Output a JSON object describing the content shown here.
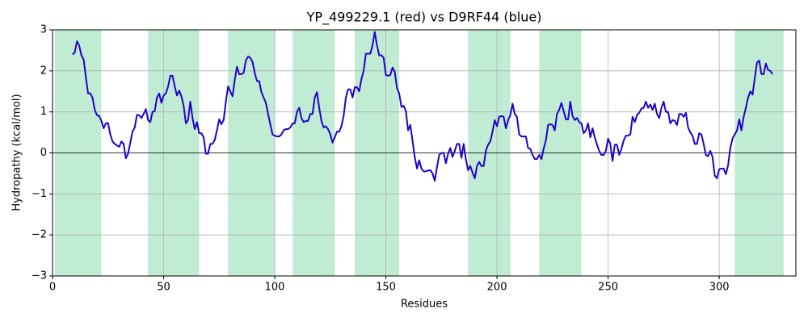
{
  "chart_data": {
    "type": "line",
    "title": "YP_499229.1 (red) vs D9RF44 (blue)",
    "xlabel": "Residues",
    "ylabel": "Hydropathy (kcal/mol)",
    "color": "#2200cc",
    "span_color": "#c0ecd4",
    "zero_line": true,
    "grid": true,
    "xlim": [
      0,
      334.5
    ],
    "ylim": [
      -3,
      3
    ],
    "xticks": [
      0,
      50,
      100,
      150,
      200,
      250,
      300
    ],
    "yticks": [
      {
        "value": -3,
        "label": "−3"
      },
      {
        "value": -2,
        "label": "−2"
      },
      {
        "value": -1,
        "label": "−1"
      },
      0,
      1,
      2,
      3
    ],
    "spans": [
      [
        1,
        22
      ],
      [
        43,
        66
      ],
      [
        79,
        100
      ],
      [
        108,
        127
      ],
      [
        136,
        156
      ],
      [
        187,
        206
      ],
      [
        219,
        238
      ],
      [
        307,
        329
      ]
    ],
    "x": [
      9,
      10,
      11,
      12,
      13,
      14,
      15,
      16,
      17,
      18,
      19,
      20,
      21,
      22,
      23,
      24,
      25,
      26,
      27,
      28,
      29,
      30,
      31,
      32,
      33,
      34,
      35,
      36,
      37,
      38,
      39,
      40,
      41,
      42,
      43,
      44,
      45,
      46,
      47,
      48,
      49,
      50,
      51,
      52,
      53,
      54,
      55,
      56,
      57,
      58,
      59,
      60,
      61,
      62,
      63,
      64,
      65,
      66,
      67,
      68,
      69,
      70,
      71,
      72,
      73,
      74,
      75,
      76,
      77,
      78,
      79,
      80,
      81,
      82,
      83,
      84,
      85,
      86,
      87,
      88,
      89,
      90,
      91,
      92,
      93,
      94,
      95,
      96,
      97,
      98,
      99,
      100,
      101,
      102,
      103,
      104,
      105,
      106,
      107,
      108,
      109,
      110,
      111,
      112,
      113,
      114,
      115,
      116,
      117,
      118,
      119,
      120,
      121,
      122,
      123,
      124,
      125,
      126,
      127,
      128,
      129,
      130,
      131,
      132,
      133,
      134,
      135,
      136,
      137,
      138,
      139,
      140,
      141,
      142,
      143,
      144,
      145,
      146,
      147,
      148,
      149,
      150,
      151,
      152,
      153,
      154,
      155,
      156,
      157,
      158,
      159,
      160,
      161,
      162,
      163,
      164,
      165,
      166,
      167,
      168,
      169,
      170,
      171,
      172,
      173,
      174,
      175,
      176,
      177,
      178,
      179,
      180,
      181,
      182,
      183,
      184,
      185,
      186,
      187,
      188,
      189,
      190,
      191,
      192,
      193,
      194,
      195,
      196,
      197,
      198,
      199,
      200,
      201,
      202,
      203,
      204,
      205,
      206,
      207,
      208,
      209,
      210,
      211,
      212,
      213,
      214,
      215,
      216,
      217,
      218,
      219,
      220,
      221,
      222,
      223,
      224,
      225,
      226,
      227,
      228,
      229,
      230,
      231,
      232,
      233,
      234,
      235,
      236,
      237,
      238,
      239,
      240,
      241,
      242,
      243,
      244,
      245,
      246,
      247,
      248,
      249,
      250,
      251,
      252,
      253,
      254,
      255,
      256,
      257,
      258,
      259,
      260,
      261,
      262,
      263,
      264,
      265,
      266,
      267,
      268,
      269,
      270,
      271,
      272,
      273,
      274,
      275,
      276,
      277,
      278,
      279,
      280,
      281,
      282,
      283,
      284,
      285,
      286,
      287,
      288,
      289,
      290,
      291,
      292,
      293,
      294,
      295,
      296,
      297,
      298,
      299,
      300,
      301,
      302,
      303,
      304,
      305,
      306,
      307,
      308,
      309,
      310,
      311,
      312,
      313,
      314,
      315,
      316,
      317,
      318,
      319,
      320,
      321,
      322,
      323,
      324
    ],
    "values": [
      2.4,
      2.45,
      2.72,
      2.62,
      2.38,
      2.28,
      1.85,
      1.45,
      1.45,
      1.35,
      1.05,
      0.92,
      0.9,
      0.78,
      0.6,
      0.72,
      0.73,
      0.45,
      0.28,
      0.22,
      0.18,
      0.15,
      0.28,
      0.22,
      -0.13,
      -0.02,
      0.25,
      0.52,
      0.62,
      0.93,
      0.92,
      0.85,
      0.95,
      1.07,
      0.8,
      0.75,
      1.0,
      1.02,
      1.35,
      1.45,
      1.22,
      1.4,
      1.45,
      1.62,
      1.88,
      1.88,
      1.62,
      1.4,
      1.52,
      1.38,
      1.15,
      0.72,
      0.8,
      1.25,
      0.85,
      0.58,
      0.75,
      0.48,
      0.48,
      0.38,
      -0.02,
      -0.02,
      0.22,
      0.22,
      0.32,
      0.55,
      0.82,
      0.7,
      0.8,
      1.25,
      1.62,
      1.5,
      1.38,
      1.78,
      2.1,
      1.92,
      1.92,
      1.95,
      2.25,
      2.35,
      2.32,
      2.22,
      1.95,
      1.75,
      1.75,
      1.48,
      1.35,
      1.22,
      0.95,
      0.7,
      0.45,
      0.42,
      0.4,
      0.4,
      0.45,
      0.55,
      0.58,
      0.58,
      0.62,
      0.72,
      0.72,
      1.0,
      1.1,
      0.85,
      0.75,
      0.78,
      0.78,
      0.95,
      0.95,
      1.35,
      1.48,
      1.1,
      0.78,
      0.62,
      0.65,
      0.58,
      0.45,
      0.25,
      0.38,
      0.52,
      0.52,
      0.65,
      0.9,
      1.35,
      1.55,
      1.55,
      1.35,
      1.6,
      1.6,
      1.5,
      1.8,
      2.0,
      2.42,
      2.42,
      2.42,
      2.62,
      2.95,
      2.62,
      2.38,
      2.38,
      2.32,
      1.9,
      1.88,
      1.9,
      2.08,
      1.98,
      1.58,
      1.45,
      1.12,
      1.15,
      1.02,
      0.55,
      0.68,
      0.3,
      -0.1,
      -0.38,
      -0.18,
      -0.38,
      -0.45,
      -0.45,
      -0.43,
      -0.42,
      -0.5,
      -0.68,
      -0.35,
      -0.05,
      0.0,
      0.0,
      -0.25,
      -0.02,
      0.12,
      -0.1,
      0.05,
      0.22,
      0.22,
      -0.12,
      0.22,
      -0.15,
      -0.42,
      -0.32,
      -0.48,
      -0.62,
      -0.32,
      -0.22,
      -0.32,
      -0.32,
      0.05,
      0.2,
      0.28,
      0.52,
      0.8,
      0.65,
      0.88,
      0.9,
      0.88,
      0.6,
      0.8,
      0.92,
      1.2,
      0.95,
      0.88,
      0.45,
      0.4,
      0.4,
      0.4,
      0.12,
      0.1,
      -0.05,
      -0.15,
      -0.15,
      -0.05,
      -0.15,
      0.1,
      0.3,
      0.68,
      0.7,
      0.68,
      0.55,
      0.95,
      1.05,
      1.22,
      1.02,
      0.82,
      0.82,
      1.25,
      0.9,
      0.8,
      0.85,
      0.75,
      0.72,
      0.48,
      0.55,
      0.72,
      0.38,
      0.6,
      0.38,
      0.2,
      0.05,
      -0.05,
      -0.05,
      0.05,
      0.35,
      0.22,
      -0.2,
      0.2,
      0.2,
      -0.05,
      0.1,
      0.3,
      0.42,
      0.42,
      0.45,
      0.88,
      0.75,
      0.92,
      0.98,
      1.08,
      1.1,
      1.25,
      1.1,
      1.18,
      1.05,
      1.2,
      0.95,
      0.85,
      1.1,
      1.25,
      1.0,
      1.0,
      0.72,
      0.8,
      0.78,
      0.68,
      0.95,
      0.95,
      0.88,
      0.98,
      0.62,
      0.5,
      0.42,
      0.22,
      0.22,
      0.48,
      0.45,
      0.22,
      -0.05,
      -0.08,
      0.05,
      -0.1,
      -0.55,
      -0.62,
      -0.4,
      -0.38,
      -0.38,
      -0.52,
      -0.3,
      0.12,
      0.35,
      0.45,
      0.55,
      0.82,
      0.55,
      0.88,
      1.1,
      1.35,
      1.5,
      1.42,
      1.82,
      2.2,
      2.25,
      1.92,
      1.92,
      2.18,
      2.02,
      2.0,
      1.92
    ]
  }
}
